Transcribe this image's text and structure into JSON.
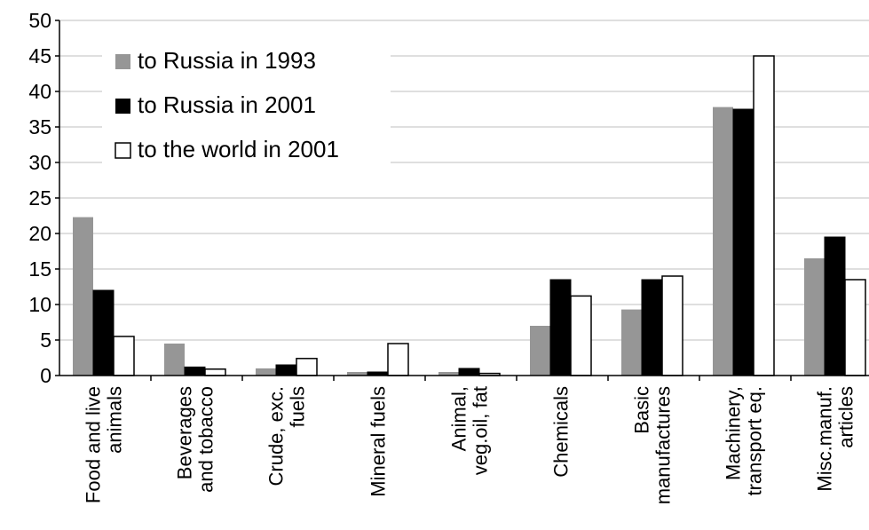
{
  "chart_data": {
    "type": "bar",
    "title": "",
    "xlabel": "",
    "ylabel": "",
    "ylim": [
      0,
      50
    ],
    "yticks": [
      0,
      5,
      10,
      15,
      20,
      25,
      30,
      35,
      40,
      45,
      50
    ],
    "grid": true,
    "legend_position": "top-left",
    "categories": [
      [
        "Food and live",
        "animals"
      ],
      [
        "Beverages",
        "and tobacco"
      ],
      [
        "Crude, exc.",
        "fuels"
      ],
      [
        "Mineral fuels"
      ],
      [
        "Animal,",
        "veg.oil, fat"
      ],
      [
        "Chemicals"
      ],
      [
        "Basic",
        "manufactures"
      ],
      [
        "Machinery,",
        "transport eq."
      ],
      [
        "Misc.manuf.",
        "articles"
      ]
    ],
    "series": [
      {
        "name": "to Russia in 1993",
        "color": "#969696",
        "values": [
          22.3,
          4.5,
          1.0,
          0.5,
          0.5,
          7.0,
          9.3,
          37.8,
          16.5
        ]
      },
      {
        "name": "to Russia in 2001",
        "color": "#000000",
        "values": [
          12.0,
          1.2,
          1.5,
          0.5,
          1.0,
          13.5,
          13.5,
          37.5,
          19.5
        ]
      },
      {
        "name": "to the world in 2001",
        "color": "#ffffff",
        "values": [
          5.5,
          0.9,
          2.4,
          4.5,
          0.3,
          11.2,
          14.0,
          45.0,
          13.5
        ]
      }
    ]
  }
}
